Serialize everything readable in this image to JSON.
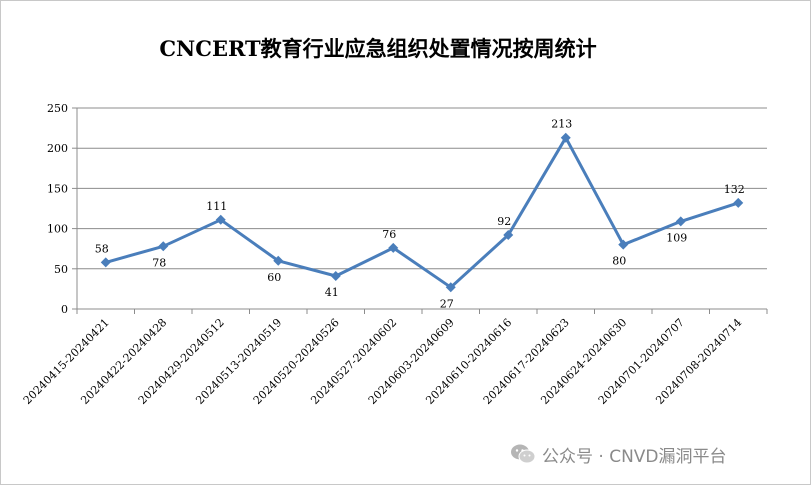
{
  "chart_data": {
    "type": "line",
    "title": "CNCERT教育行业应急组织处置情况按周统计",
    "xlabel": "",
    "ylabel": "",
    "categories": [
      "20240415-20240421",
      "20240422-20240428",
      "20240429-20240512",
      "20240513-20240519",
      "20240520-20240526",
      "20240527-20240602",
      "20240603-20240609",
      "20240610-20240616",
      "20240617-20240623",
      "20240624-20240630",
      "20240701-20240707",
      "20240708-20240714"
    ],
    "values": [
      58,
      78,
      111,
      60,
      41,
      76,
      27,
      92,
      213,
      80,
      109,
      132
    ],
    "ylim": [
      0,
      250
    ],
    "yticks": [
      0,
      50,
      100,
      150,
      200,
      250
    ],
    "grid": true,
    "legend": "none",
    "color": "#4a7ebb",
    "marker": "diamond"
  },
  "watermark": {
    "icon": "wechat-icon",
    "text": "公众号 · CNVD漏洞平台"
  }
}
